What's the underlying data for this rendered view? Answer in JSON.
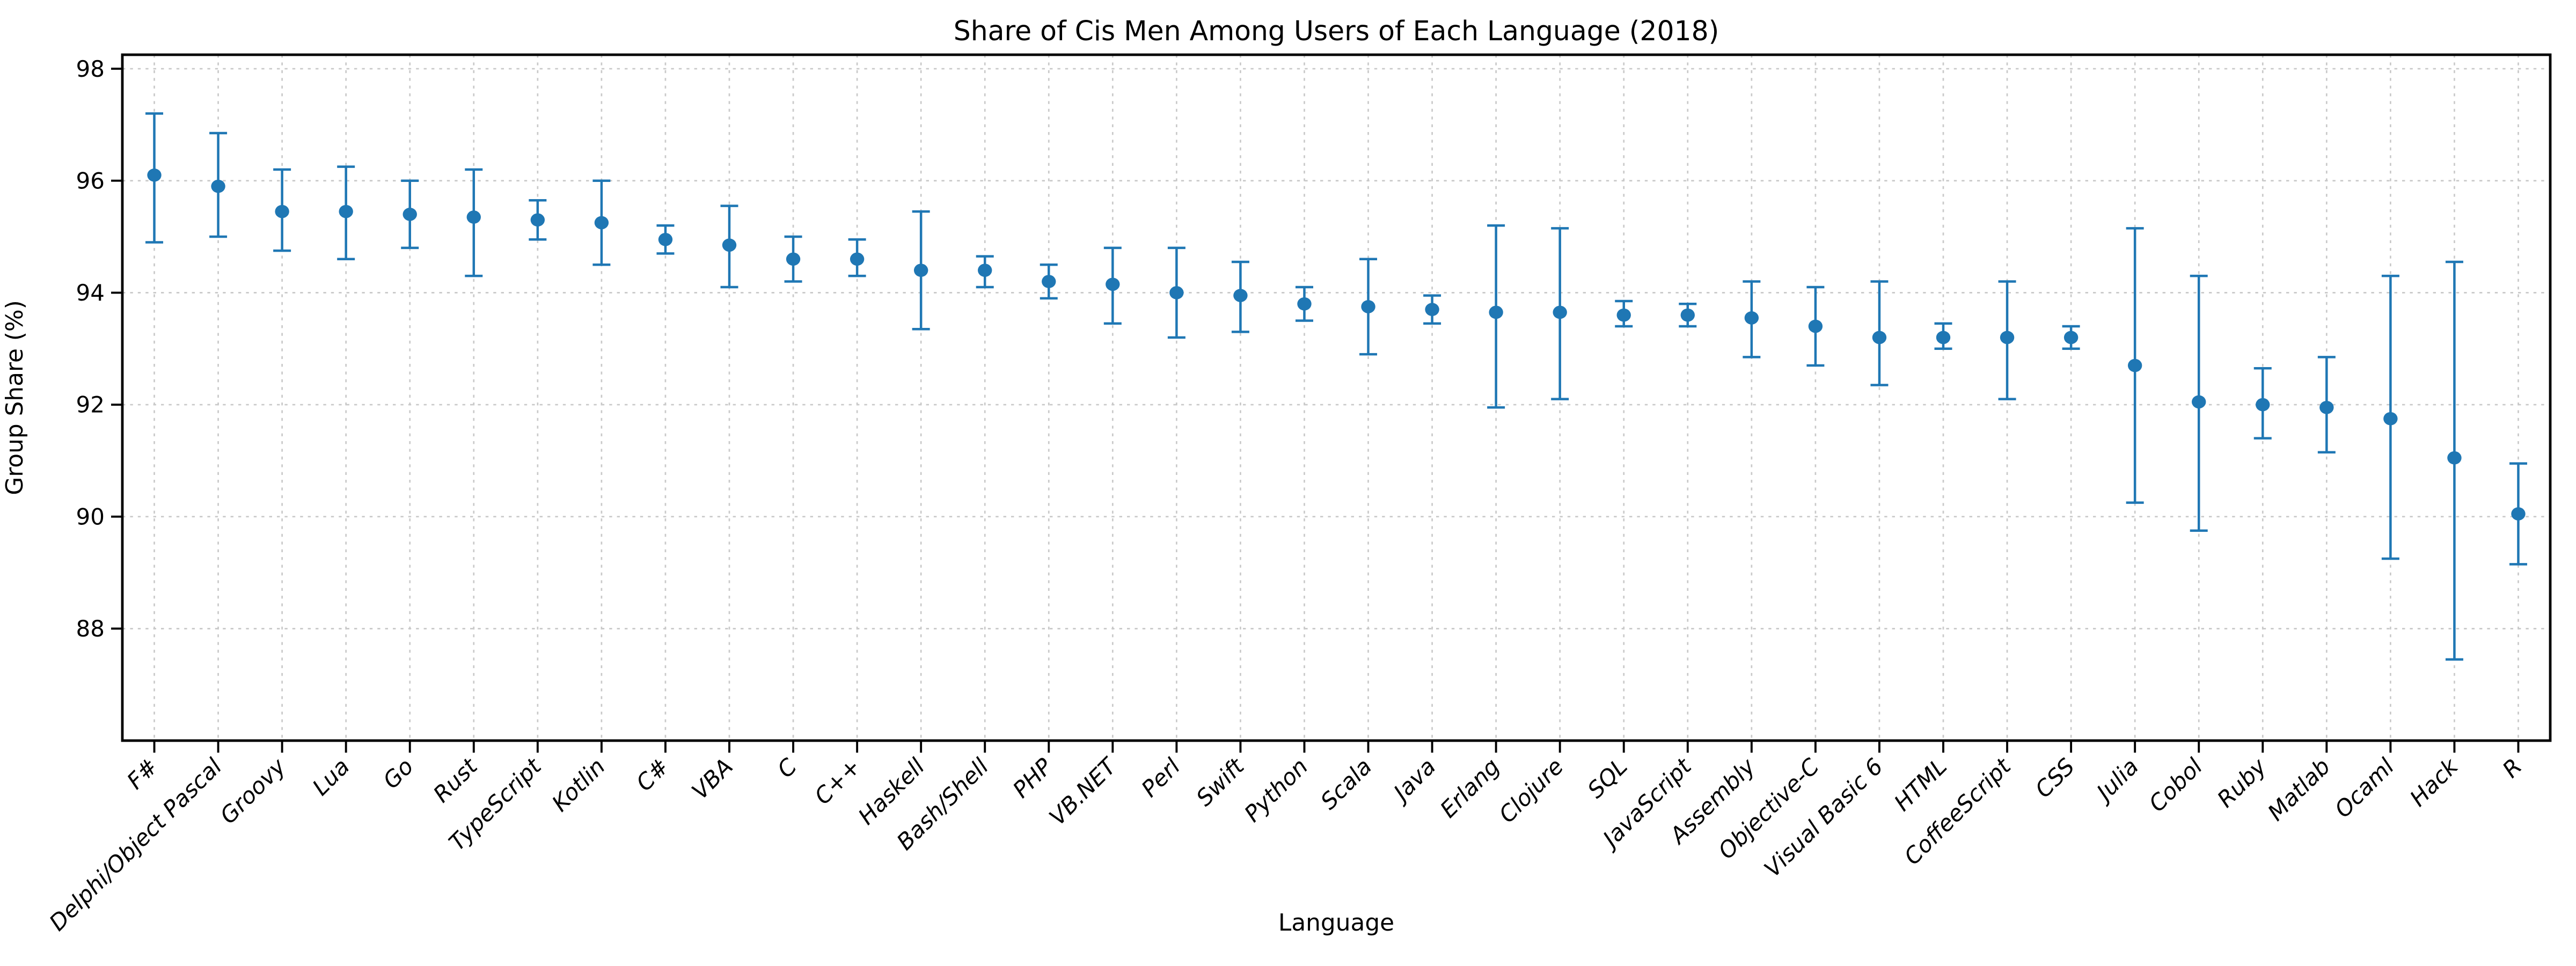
{
  "chart_data": {
    "type": "scatter",
    "title": "Share of Cis Men Among Users of Each Language (2018)",
    "xlabel": "Language",
    "ylabel": "Group Share (%)",
    "legend": false,
    "grid": true,
    "marker_color": "#1f77b4",
    "grid_color": "#c9c9c9",
    "spine_color": "#000000",
    "ylim": [
      86.0,
      98.25
    ],
    "yticks": [
      88,
      90,
      92,
      94,
      96,
      98
    ],
    "categories": [
      "F#",
      "Delphi/Object Pascal",
      "Groovy",
      "Lua",
      "Go",
      "Rust",
      "TypeScript",
      "Kotlin",
      "C#",
      "VBA",
      "C",
      "C++",
      "Haskell",
      "Bash/Shell",
      "PHP",
      "VB.NET",
      "Perl",
      "Swift",
      "Python",
      "Scala",
      "Java",
      "Erlang",
      "Clojure",
      "SQL",
      "JavaScript",
      "Assembly",
      "Objective-C",
      "Visual Basic 6",
      "HTML",
      "CoffeeScript",
      "CSS",
      "Julia",
      "Cobol",
      "Ruby",
      "Matlab",
      "Ocaml",
      "Hack",
      "R"
    ],
    "values": [
      96.1,
      95.9,
      95.45,
      95.45,
      95.4,
      95.35,
      95.3,
      95.25,
      94.95,
      94.85,
      94.6,
      94.6,
      94.4,
      94.4,
      94.2,
      94.15,
      94.0,
      93.95,
      93.8,
      93.75,
      93.7,
      93.65,
      93.65,
      93.6,
      93.6,
      93.55,
      93.4,
      93.2,
      93.2,
      93.2,
      93.2,
      92.7,
      92.05,
      92.0,
      91.95,
      91.75,
      91.05,
      90.05
    ],
    "error_low": [
      94.9,
      95.0,
      94.75,
      94.6,
      94.8,
      94.3,
      94.95,
      94.5,
      94.7,
      94.1,
      94.2,
      94.3,
      93.35,
      94.1,
      93.9,
      93.45,
      93.2,
      93.3,
      93.5,
      92.9,
      93.45,
      91.95,
      92.1,
      93.4,
      93.4,
      92.85,
      92.7,
      92.35,
      93.0,
      92.1,
      93.0,
      90.25,
      89.75,
      91.4,
      91.15,
      89.25,
      87.45,
      89.15
    ],
    "error_high": [
      97.2,
      96.85,
      96.2,
      96.25,
      96.0,
      96.2,
      95.65,
      96.0,
      95.2,
      95.55,
      95.0,
      94.95,
      95.45,
      94.65,
      94.5,
      94.8,
      94.8,
      94.55,
      94.1,
      94.6,
      93.95,
      95.2,
      95.15,
      93.85,
      93.8,
      94.2,
      94.1,
      94.2,
      93.45,
      94.2,
      93.4,
      95.15,
      94.3,
      92.65,
      92.85,
      94.3,
      94.55,
      90.95
    ]
  }
}
